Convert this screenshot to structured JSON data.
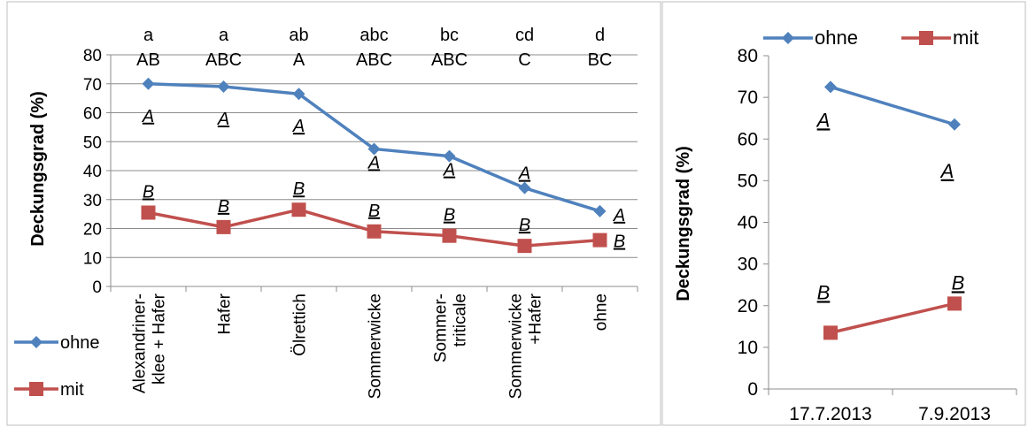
{
  "chart_data": [
    {
      "type": "line",
      "ylabel": "Deckungsgrad (%)",
      "ylim": [
        0,
        80
      ],
      "yticks": [
        "0",
        "10",
        "20",
        "30",
        "40",
        "50",
        "60",
        "70",
        "80"
      ],
      "grid": true,
      "legend_position": "bottom-left",
      "categories": [
        "Alexandriner-\nklee + Hafer",
        "Hafer",
        "Ölrettich",
        "Sommerwicke",
        "Sommer-\ntriticale",
        "Sommerwicke\n+Hafer",
        "ohne"
      ],
      "series": [
        {
          "name": "ohne",
          "color": "#4f81bd",
          "marker": "diamond",
          "values": [
            70,
            69,
            66.5,
            47.5,
            45,
            34,
            26
          ]
        },
        {
          "name": "mit",
          "color": "#c0504d",
          "marker": "square",
          "values": [
            25.5,
            20.5,
            26.5,
            19,
            17.5,
            14,
            16
          ]
        }
      ],
      "top_letters_row1": [
        "a",
        "a",
        "ab",
        "abc",
        "bc",
        "cd",
        "d"
      ],
      "top_letters_row2": [
        "AB",
        "ABC",
        "A",
        "ABC",
        "ABC",
        "C",
        "BC"
      ],
      "ohne_marks": [
        "A",
        "A",
        "A",
        "A",
        "A",
        "A",
        "A"
      ],
      "mit_marks": [
        "B",
        "B",
        "B",
        "B",
        "B",
        "B",
        "B"
      ]
    },
    {
      "type": "line",
      "ylabel": "Deckungsgrad (%)",
      "ylim": [
        0,
        80
      ],
      "yticks": [
        "0",
        "10",
        "20",
        "30",
        "40",
        "50",
        "60",
        "70",
        "80"
      ],
      "grid": false,
      "legend_position": "top",
      "categories": [
        "17.7.2013",
        "7.9.2013"
      ],
      "series": [
        {
          "name": "ohne",
          "color": "#4f81bd",
          "marker": "diamond",
          "values": [
            72.5,
            63.5
          ]
        },
        {
          "name": "mit",
          "color": "#c0504d",
          "marker": "square",
          "values": [
            13.5,
            20.5
          ]
        }
      ],
      "ohne_marks": [
        "A",
        "A"
      ],
      "mit_marks": [
        "B",
        "B"
      ]
    }
  ]
}
